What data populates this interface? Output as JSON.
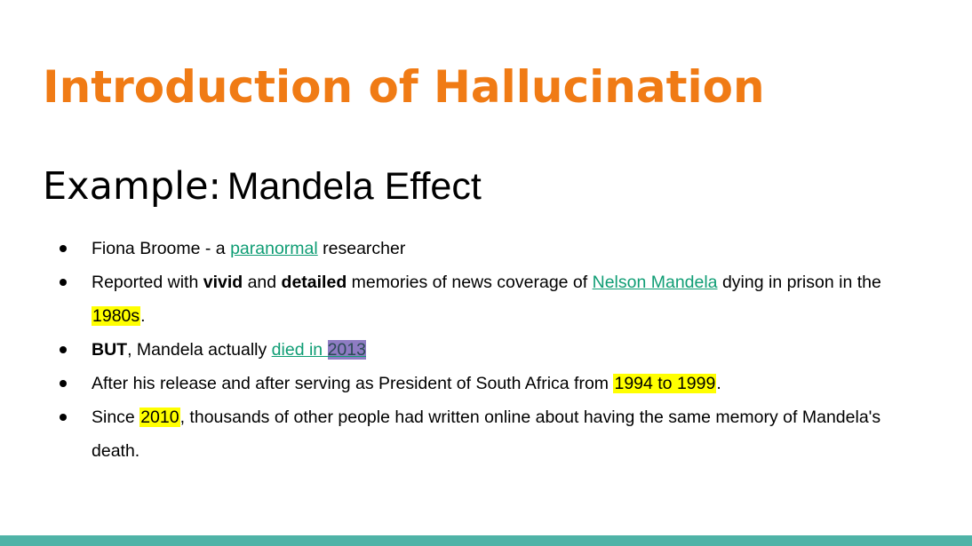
{
  "slide": {
    "title": "Introduction of Hallucination",
    "subtitle_lead": "Example:",
    "subtitle_topic": "Mandela Effect"
  },
  "bullets": [
    {
      "text_1": "Fiona Broome - a ",
      "link": "paranormal",
      "text_2": " researcher"
    },
    {
      "text_1": "Reported with ",
      "bold_1": "vivid",
      "text_2": " and ",
      "bold_2": "detailed",
      "text_3": " memories of news coverage of ",
      "link": "Nelson Mandela",
      "text_4": " dying in prison in the ",
      "highlight": "1980s",
      "text_5": "."
    },
    {
      "bold": "BUT",
      "text_1": ", Mandela actually ",
      "link": "died in ",
      "link_highlight": "2013"
    },
    {
      "text_1": "After his release and after serving as President of South Africa from ",
      "highlight": "1994 to 1999",
      "text_2": "."
    },
    {
      "text_1": "Since ",
      "highlight": "2010",
      "text_2": ", thousands of other people had written online about having the same memory of Mandela's death."
    }
  ],
  "colors": {
    "title": "#f07b15",
    "text": "#000000",
    "link": "#0f9d74",
    "highlight_yellow": "#ffff00",
    "highlight_purple": "#8e7cc3",
    "bottom_bar": "#4fb3a7"
  }
}
